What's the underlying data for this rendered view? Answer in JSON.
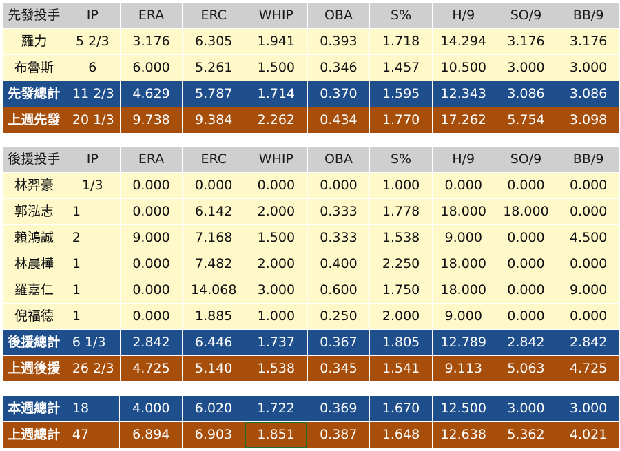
{
  "starters": {
    "header": [
      "先發投手",
      "IP",
      "ERA",
      "ERC",
      "WHIP",
      "OBA",
      "S%",
      "H/9",
      "SO/9",
      "BB/9"
    ],
    "players": [
      [
        "羅力",
        "5 2/3",
        "3.176",
        "6.305",
        "1.941",
        "0.393",
        "1.718",
        "14.294",
        "3.176",
        "3.176"
      ],
      [
        "布魯斯",
        "6",
        "6.000",
        "5.261",
        "1.500",
        "0.346",
        "1.457",
        "10.500",
        "3.000",
        "3.000"
      ]
    ],
    "total": [
      "先發總計",
      "11 2/3",
      "4.629",
      "5.787",
      "1.714",
      "0.370",
      "1.595",
      "12.343",
      "3.086",
      "3.086"
    ],
    "last_week": [
      "上週先發",
      "20 1/3",
      "9.738",
      "9.384",
      "2.262",
      "0.434",
      "1.770",
      "17.262",
      "5.754",
      "3.098"
    ]
  },
  "relievers": {
    "header": [
      "後援投手",
      "IP",
      "ERA",
      "ERC",
      "WHIP",
      "OBA",
      "S%",
      "H/9",
      "SO/9",
      "BB/9"
    ],
    "players": [
      [
        "林羿豪",
        "1/3",
        "0.000",
        "0.000",
        "0.000",
        "0.000",
        "1.000",
        "0.000",
        "0.000",
        "0.000"
      ],
      [
        "郭泓志",
        "1",
        "0.000",
        "6.142",
        "2.000",
        "0.333",
        "1.778",
        "18.000",
        "18.000",
        "0.000"
      ],
      [
        "賴鴻誠",
        "2",
        "9.000",
        "7.168",
        "1.500",
        "0.333",
        "1.538",
        "9.000",
        "0.000",
        "4.500"
      ],
      [
        "林晨樺",
        "1",
        "0.000",
        "7.482",
        "2.000",
        "0.400",
        "2.250",
        "18.000",
        "0.000",
        "0.000"
      ],
      [
        "羅嘉仁",
        "1",
        "0.000",
        "14.068",
        "3.000",
        "0.600",
        "1.750",
        "18.000",
        "0.000",
        "9.000"
      ],
      [
        "倪福德",
        "1",
        "0.000",
        "1.885",
        "1.000",
        "0.250",
        "2.000",
        "9.000",
        "0.000",
        "0.000"
      ]
    ],
    "total": [
      "後援總計",
      "6 1/3",
      "2.842",
      "6.446",
      "1.737",
      "0.367",
      "1.805",
      "12.789",
      "2.842",
      "2.842"
    ],
    "last_week": [
      "上週後援",
      "26 2/3",
      "4.725",
      "5.140",
      "1.538",
      "0.345",
      "1.541",
      "9.113",
      "5.063",
      "4.725"
    ]
  },
  "totals": {
    "this_week": [
      "本週總計",
      "18",
      "4.000",
      "6.020",
      "1.722",
      "0.369",
      "1.670",
      "12.500",
      "3.000",
      "3.000"
    ],
    "last_week": [
      "上週總計",
      "47",
      "6.894",
      "6.903",
      "1.851",
      "0.387",
      "1.648",
      "12.638",
      "5.362",
      "4.021"
    ]
  },
  "colors": {
    "header_bg": "#cfcfcf",
    "player_bg": "#fff9c9",
    "total_bg": "#1f4e8c",
    "last_week_bg": "#a84e0b",
    "selected_cell_border": "#1e6e2e"
  }
}
